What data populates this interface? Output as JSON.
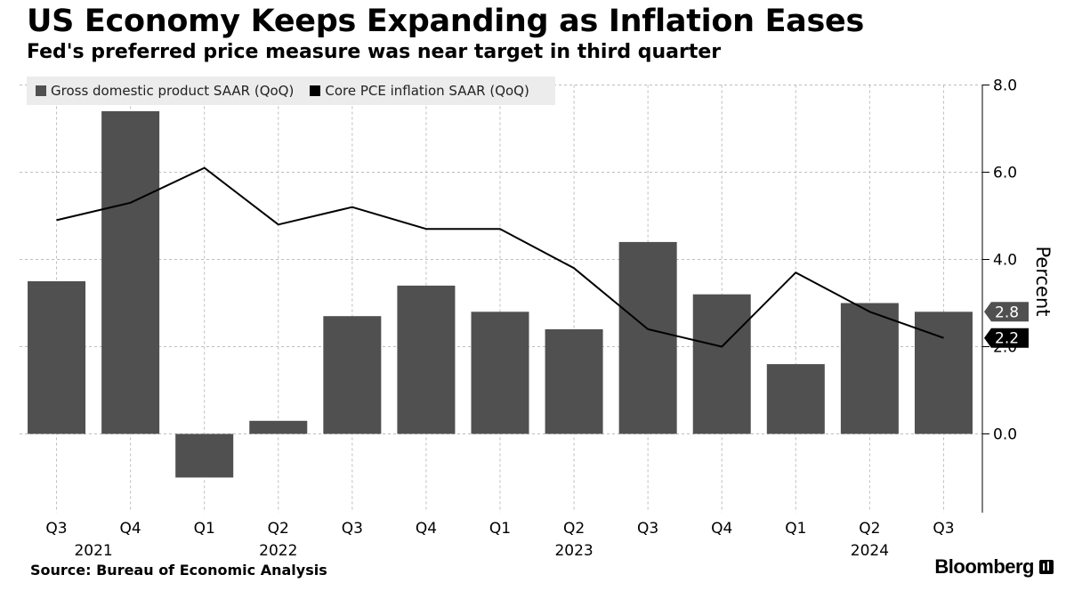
{
  "title": "US Economy Keeps Expanding as Inflation Eases",
  "subtitle": "Fed's preferred price measure was near target in third quarter",
  "source": "Source: Bureau of Economic Analysis",
  "brand": "Bloomberg",
  "colors": {
    "bar": "#505050",
    "line": "#000000",
    "grid": "#bdbdbd",
    "axis": "#000000"
  },
  "chart_data": {
    "type": "bar",
    "categories": [
      "Q3",
      "Q4",
      "Q1",
      "Q2",
      "Q3",
      "Q4",
      "Q1",
      "Q2",
      "Q3",
      "Q4",
      "Q1",
      "Q2",
      "Q3"
    ],
    "year_labels": [
      {
        "label": "2021",
        "index": 0.5
      },
      {
        "label": "2022",
        "index": 3
      },
      {
        "label": "2023",
        "index": 7
      },
      {
        "label": "2024",
        "index": 11
      }
    ],
    "series": [
      {
        "name": "Gross domestic product SAAR (QoQ)",
        "type": "bar",
        "values": [
          3.5,
          7.4,
          -1.0,
          0.3,
          2.7,
          3.4,
          2.8,
          2.4,
          4.4,
          3.2,
          1.6,
          3.0,
          2.8
        ]
      },
      {
        "name": "Core PCE inflation SAAR (QoQ)",
        "type": "line",
        "values": [
          4.9,
          5.3,
          6.1,
          4.8,
          5.2,
          4.7,
          4.7,
          3.8,
          2.4,
          2.0,
          3.7,
          2.8,
          2.2
        ]
      }
    ],
    "ylabel": "Percent",
    "ylim": [
      -1.8,
      8.0
    ],
    "yticks": [
      0.0,
      2.0,
      4.0,
      6.0,
      8.0
    ],
    "ytick_labels": [
      "0.0",
      "2.0",
      "4.0",
      "6.0",
      "8.0"
    ],
    "end_labels": [
      {
        "series": 0,
        "value": 2.8,
        "label": "2.8"
      },
      {
        "series": 1,
        "value": 2.2,
        "label": "2.2"
      }
    ],
    "grid": true,
    "legend_position": "top-left",
    "y_axis_side": "right"
  }
}
